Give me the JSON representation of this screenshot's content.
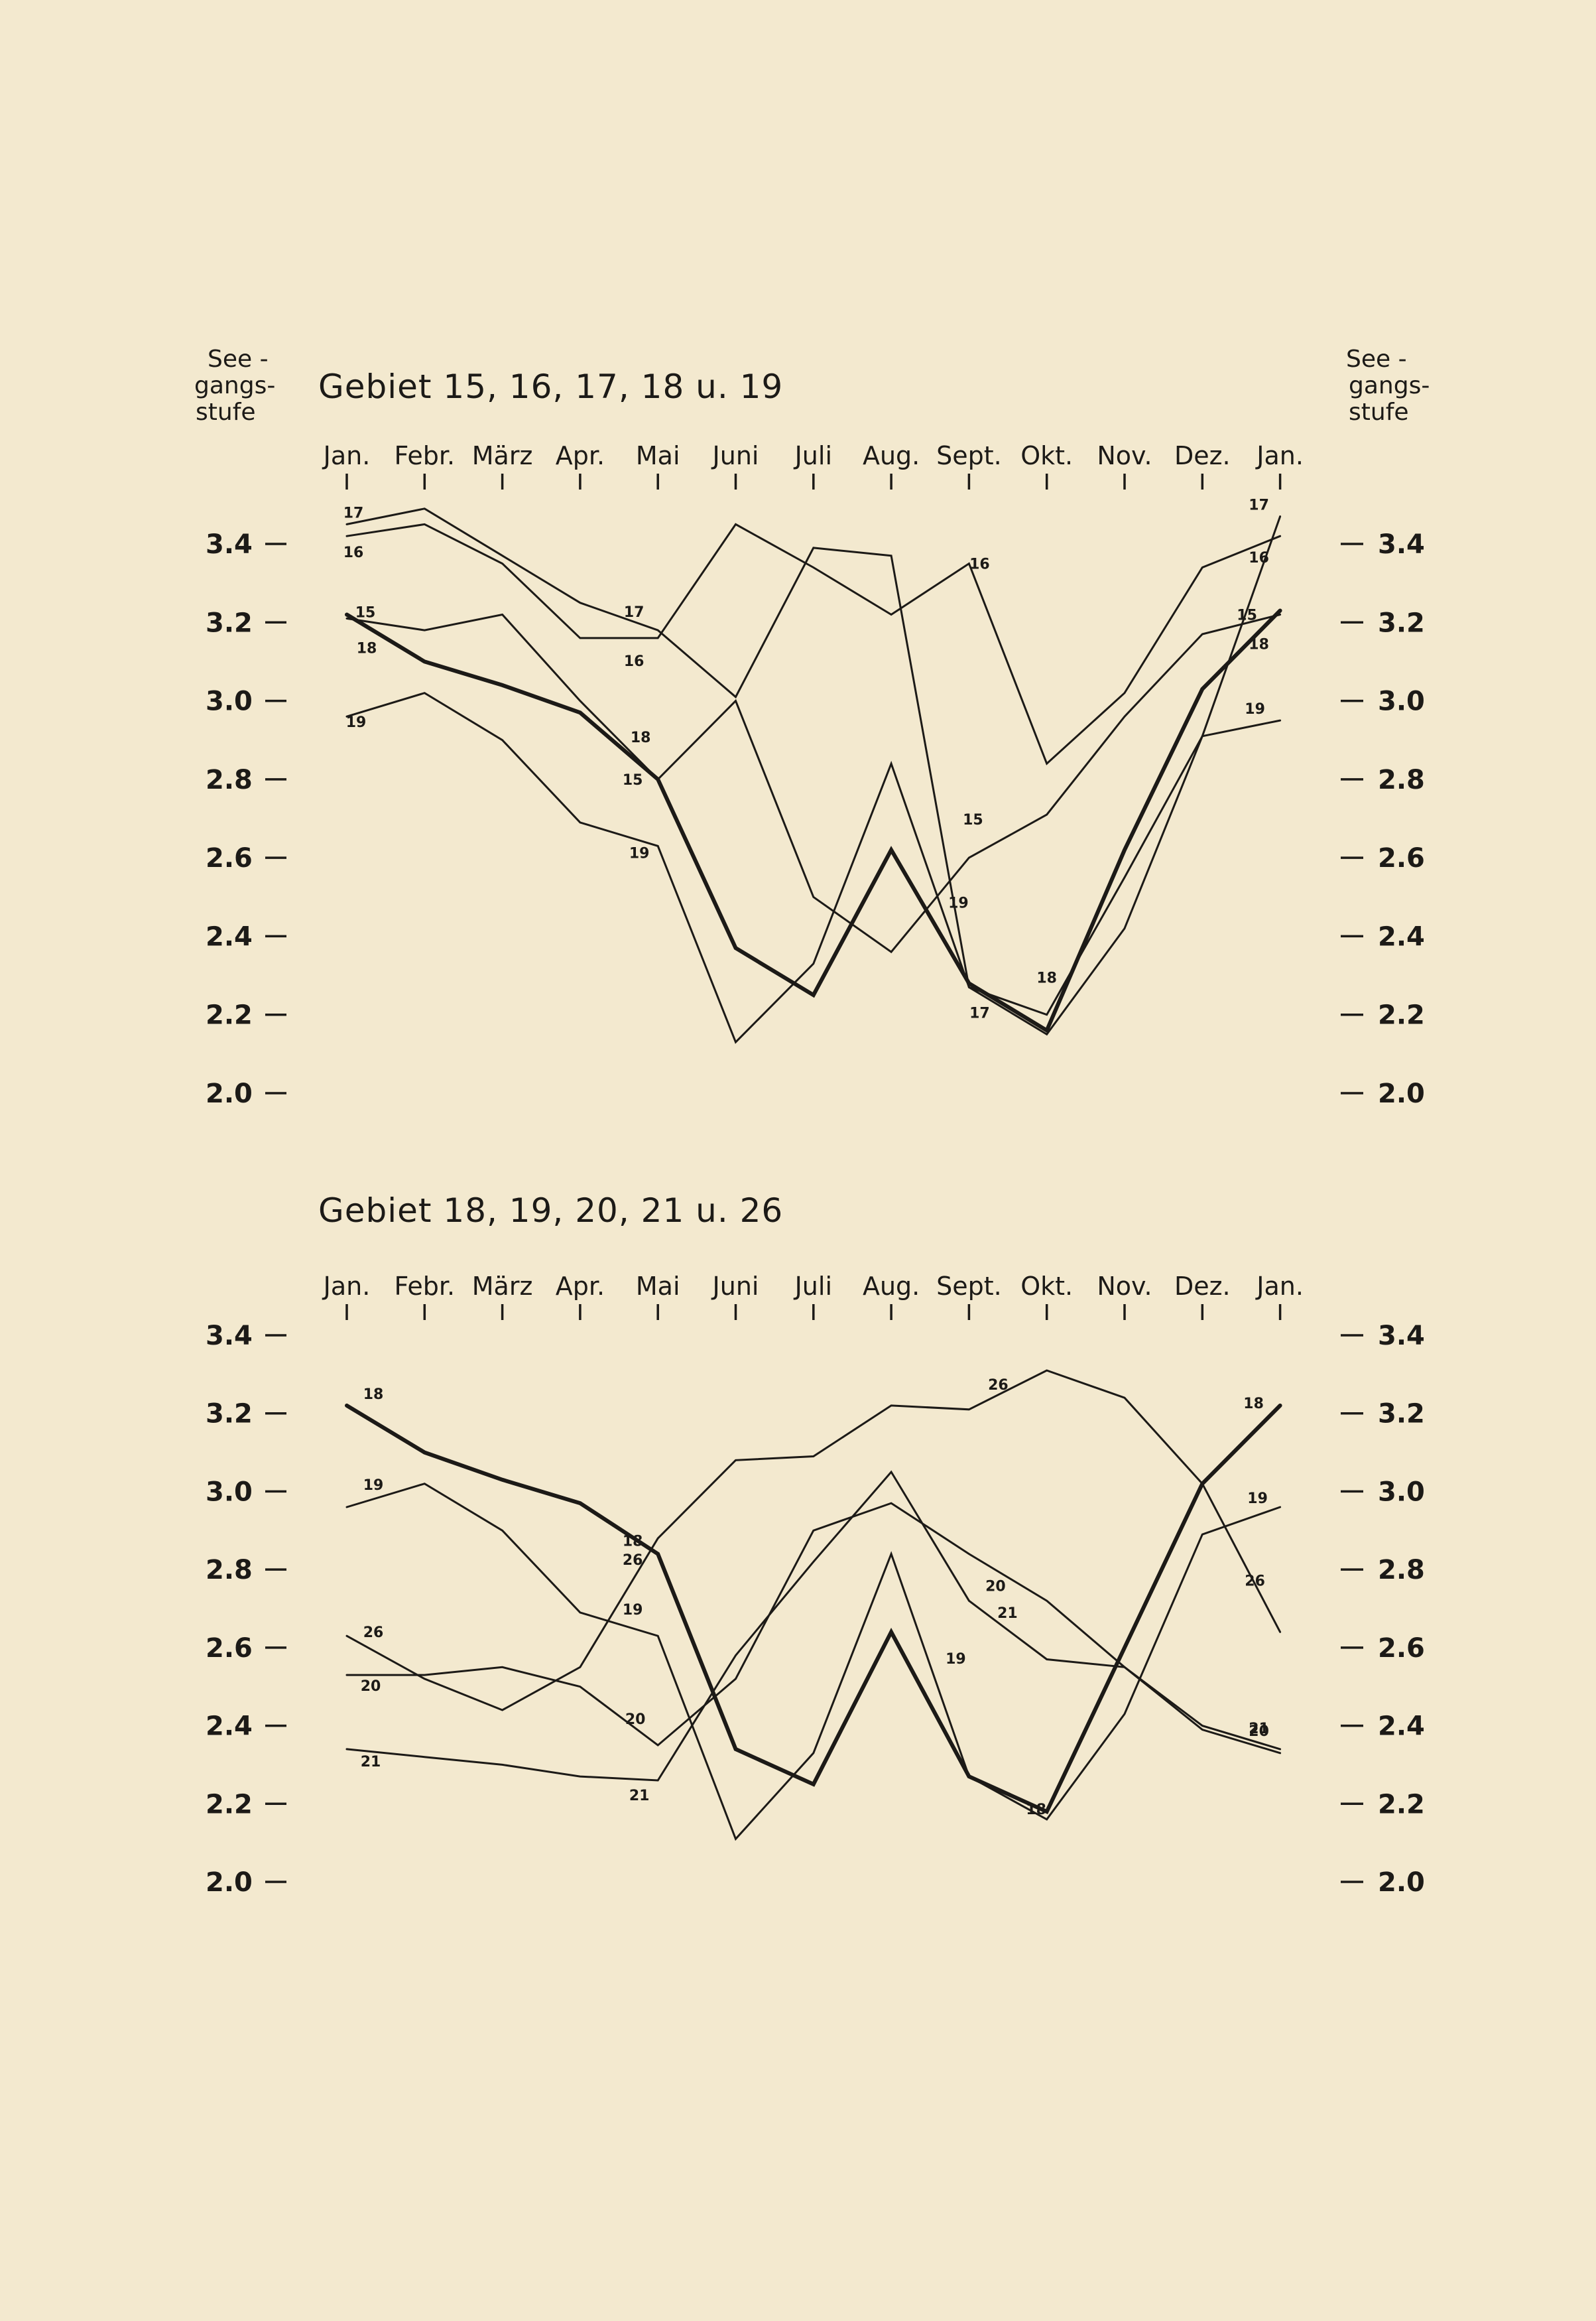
{
  "page": {
    "y_axis_label_lines": [
      "See -",
      "gangs-",
      "stufe"
    ],
    "y_axis_label_lines_right": [
      "See -",
      "gangs-",
      "stufe"
    ]
  },
  "chart_data": [
    {
      "type": "line",
      "title": "Gebiet 15, 16, 17, 18 u. 19",
      "ylabel": "Seegangsstufe",
      "categories": [
        "Jan.",
        "Febr.",
        "März",
        "Apr.",
        "Mai",
        "Juni",
        "Juli",
        "Aug.",
        "Sept.",
        "Okt.",
        "Nov.",
        "Dez.",
        "Jan."
      ],
      "ylim": [
        2.0,
        3.4
      ],
      "yticks": [
        "3.4",
        "3.2",
        "3.0",
        "2.8",
        "2.6",
        "2.4",
        "2.2",
        "2.0"
      ],
      "grid": false,
      "series": [
        {
          "name": "15",
          "values": [
            3.21,
            3.18,
            3.22,
            3.0,
            2.8,
            3.0,
            2.5,
            2.36,
            2.6,
            2.71,
            2.96,
            3.17,
            3.22
          ],
          "labels": [
            {
              "i": 0,
              "text": "15",
              "dx": 28,
              "dy": -2
            },
            {
              "i": 4,
              "text": "15",
              "dx": -38,
              "dy": 8
            },
            {
              "i": 8,
              "text": "15",
              "dx": 6,
              "dy": -50
            },
            {
              "i": 12,
              "text": "15",
              "dx": -50,
              "dy": 8
            }
          ]
        },
        {
          "name": "16",
          "values": [
            3.42,
            3.45,
            3.35,
            3.16,
            3.16,
            3.45,
            3.34,
            3.22,
            3.35,
            2.84,
            3.02,
            3.34,
            3.42
          ],
          "labels": [
            {
              "i": 0,
              "text": "16",
              "dx": 10,
              "dy": 32
            },
            {
              "i": 4,
              "text": "16",
              "dx": -36,
              "dy": 42
            },
            {
              "i": 8,
              "text": "16",
              "dx": 16,
              "dy": 8
            },
            {
              "i": 12,
              "text": "16",
              "dx": -32,
              "dy": 40
            }
          ]
        },
        {
          "name": "17",
          "values": [
            3.45,
            3.49,
            3.37,
            3.25,
            3.18,
            3.01,
            3.39,
            3.37,
            2.27,
            2.15,
            2.42,
            2.91,
            3.47
          ],
          "labels": [
            {
              "i": 0,
              "text": "17",
              "dx": 10,
              "dy": -10
            },
            {
              "i": 4,
              "text": "17",
              "dx": -36,
              "dy": -20
            },
            {
              "i": 8,
              "text": "17",
              "dx": 16,
              "dy": 46
            },
            {
              "i": 12,
              "text": "17",
              "dx": -32,
              "dy": -10
            }
          ]
        },
        {
          "name": "18",
          "values": [
            3.22,
            3.1,
            3.04,
            2.97,
            2.8,
            2.37,
            2.25,
            2.62,
            2.28,
            2.16,
            2.62,
            3.03,
            3.23
          ],
          "width": 6,
          "labels": [
            {
              "i": 0,
              "text": "18",
              "dx": 30,
              "dy": 58
            },
            {
              "i": 4,
              "text": "18",
              "dx": -26,
              "dy": -56
            },
            {
              "i": 9,
              "text": "18",
              "dx": 0,
              "dy": -72
            },
            {
              "i": 12,
              "text": "18",
              "dx": -32,
              "dy": 58
            }
          ]
        },
        {
          "name": "19",
          "values": [
            2.96,
            3.02,
            2.9,
            2.69,
            2.63,
            2.13,
            2.33,
            2.84,
            2.27,
            2.2,
            2.55,
            2.91,
            2.95
          ],
          "labels": [
            {
              "i": 0,
              "text": "19",
              "dx": 14,
              "dy": 16
            },
            {
              "i": 4,
              "text": "19",
              "dx": -28,
              "dy": 18
            },
            {
              "i": 8,
              "text": "19",
              "dx": -16,
              "dy": -120
            },
            {
              "i": 12,
              "text": "19",
              "dx": -38,
              "dy": -10
            }
          ]
        }
      ]
    },
    {
      "type": "line",
      "title": "Gebiet 18, 19, 20, 21 u. 26",
      "ylabel": "Seegangsstufe",
      "categories": [
        "Jan.",
        "Febr.",
        "März",
        "Apr.",
        "Mai",
        "Juni",
        "Juli",
        "Aug.",
        "Sept.",
        "Okt.",
        "Nov.",
        "Dez.",
        "Jan."
      ],
      "ylim": [
        2.0,
        3.4
      ],
      "yticks": [
        "3.4",
        "3.2",
        "3.0",
        "2.8",
        "2.6",
        "2.4",
        "2.2",
        "2.0"
      ],
      "grid": false,
      "series": [
        {
          "name": "18",
          "values": [
            3.22,
            3.1,
            3.03,
            2.97,
            2.84,
            2.34,
            2.25,
            2.64,
            2.27,
            2.18,
            2.6,
            3.02,
            3.22
          ],
          "width": 6,
          "labels": [
            {
              "i": 0,
              "text": "18",
              "dx": 40,
              "dy": -10
            },
            {
              "i": 4,
              "text": "18",
              "dx": -38,
              "dy": -12
            },
            {
              "i": 9,
              "text": "18",
              "dx": -16,
              "dy": 4
            },
            {
              "i": 12,
              "text": "18",
              "dx": -40,
              "dy": 4
            }
          ]
        },
        {
          "name": "19",
          "values": [
            2.96,
            3.02,
            2.9,
            2.69,
            2.63,
            2.11,
            2.33,
            2.84,
            2.27,
            2.16,
            2.43,
            2.89,
            2.96
          ],
          "labels": [
            {
              "i": 0,
              "text": "19",
              "dx": 40,
              "dy": -26
            },
            {
              "i": 4,
              "text": "19",
              "dx": -38,
              "dy": -32
            },
            {
              "i": 8,
              "text": "19",
              "dx": -20,
              "dy": -170
            },
            {
              "i": 12,
              "text": "19",
              "dx": -34,
              "dy": -6
            }
          ]
        },
        {
          "name": "20",
          "values": [
            2.53,
            2.53,
            2.55,
            2.5,
            2.35,
            2.52,
            2.9,
            2.97,
            2.84,
            2.72,
            2.55,
            2.39,
            2.33
          ],
          "labels": [
            {
              "i": 0,
              "text": "20",
              "dx": 36,
              "dy": 24
            },
            {
              "i": 4,
              "text": "20",
              "dx": -34,
              "dy": -32
            },
            {
              "i": 8,
              "text": "20",
              "dx": 40,
              "dy": 56
            },
            {
              "i": 12,
              "text": "20",
              "dx": -32,
              "dy": -26
            }
          ]
        },
        {
          "name": "21",
          "values": [
            2.34,
            2.32,
            2.3,
            2.27,
            2.26,
            2.58,
            2.82,
            3.05,
            2.72,
            2.57,
            2.55,
            2.4,
            2.34
          ],
          "labels": [
            {
              "i": 0,
              "text": "21",
              "dx": 36,
              "dy": 26
            },
            {
              "i": 4,
              "text": "21",
              "dx": -28,
              "dy": 30
            },
            {
              "i": 8,
              "text": "21",
              "dx": 58,
              "dy": 26
            },
            {
              "i": 12,
              "text": "21",
              "dx": -32,
              "dy": -24
            }
          ]
        },
        {
          "name": "26",
          "values": [
            2.63,
            2.52,
            2.44,
            2.55,
            2.88,
            3.08,
            3.09,
            3.22,
            3.21,
            3.31,
            3.24,
            3.02,
            2.64
          ],
          "labels": [
            {
              "i": 0,
              "text": "26",
              "dx": 40,
              "dy": 2
            },
            {
              "i": 4,
              "text": "26",
              "dx": -38,
              "dy": 40
            },
            {
              "i": 8,
              "text": "26",
              "dx": 44,
              "dy": -30
            },
            {
              "i": 12,
              "text": "26",
              "dx": -38,
              "dy": -70
            }
          ]
        }
      ]
    }
  ]
}
